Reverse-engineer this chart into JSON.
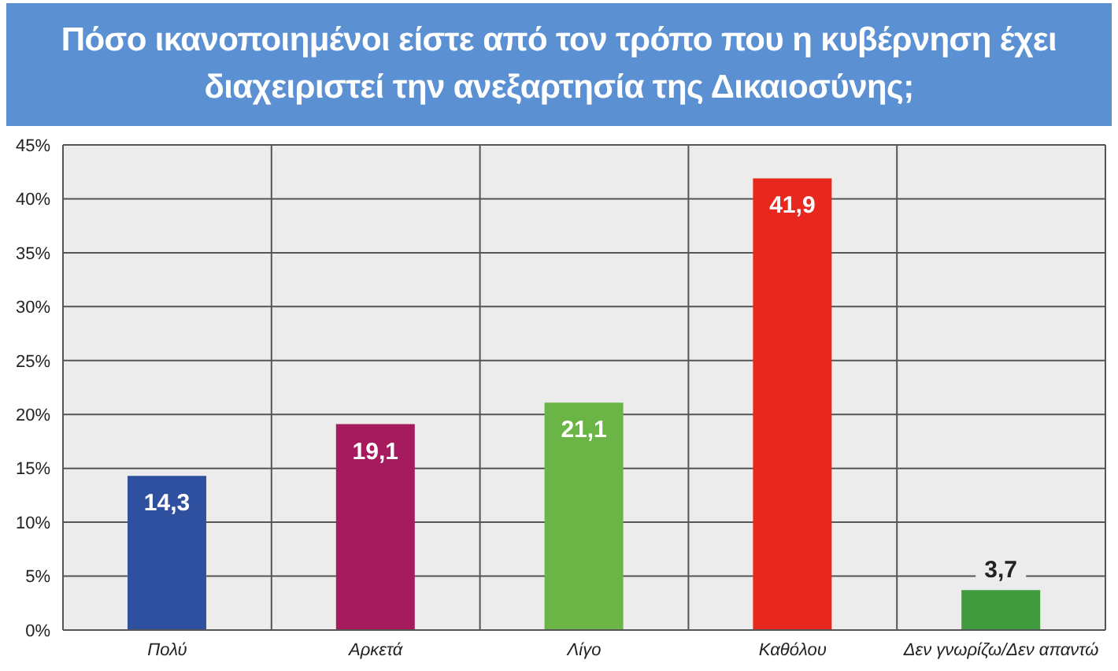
{
  "chart_data": {
    "type": "bar",
    "title": "Πόσο ικανοποιημένοι είστε από τον τρόπο που η κυβέρνηση έχει διαχειριστεί την ανεξαρτησία της Δικαιοσύνης;",
    "categories": [
      "Πολύ",
      "Αρκετά",
      "Λίγο",
      "Καθόλου",
      "Δεν γνωρίζω/Δεν απαντώ"
    ],
    "values": [
      14.3,
      19.1,
      21.1,
      41.9,
      3.7
    ],
    "colors": [
      "#2f4f9f",
      "#a51b5e",
      "#6bb547",
      "#e8271f",
      "#3f9b3d"
    ],
    "value_labels": [
      "14,3",
      "19,1",
      "21,1",
      "41,9",
      "3,7"
    ],
    "ylim": [
      0,
      45
    ],
    "yticks": [
      {
        "value": 0,
        "label": "0%"
      },
      {
        "value": 5,
        "label": "5%"
      },
      {
        "value": 10,
        "label": "10%"
      },
      {
        "value": 15,
        "label": "15%"
      },
      {
        "value": 20,
        "label": "20%"
      },
      {
        "value": 25,
        "label": "25%"
      },
      {
        "value": 30,
        "label": "30%"
      },
      {
        "value": 35,
        "label": "35%"
      },
      {
        "value": 40,
        "label": "40%"
      },
      {
        "value": 45,
        "label": "45%"
      }
    ],
    "grid": true
  }
}
